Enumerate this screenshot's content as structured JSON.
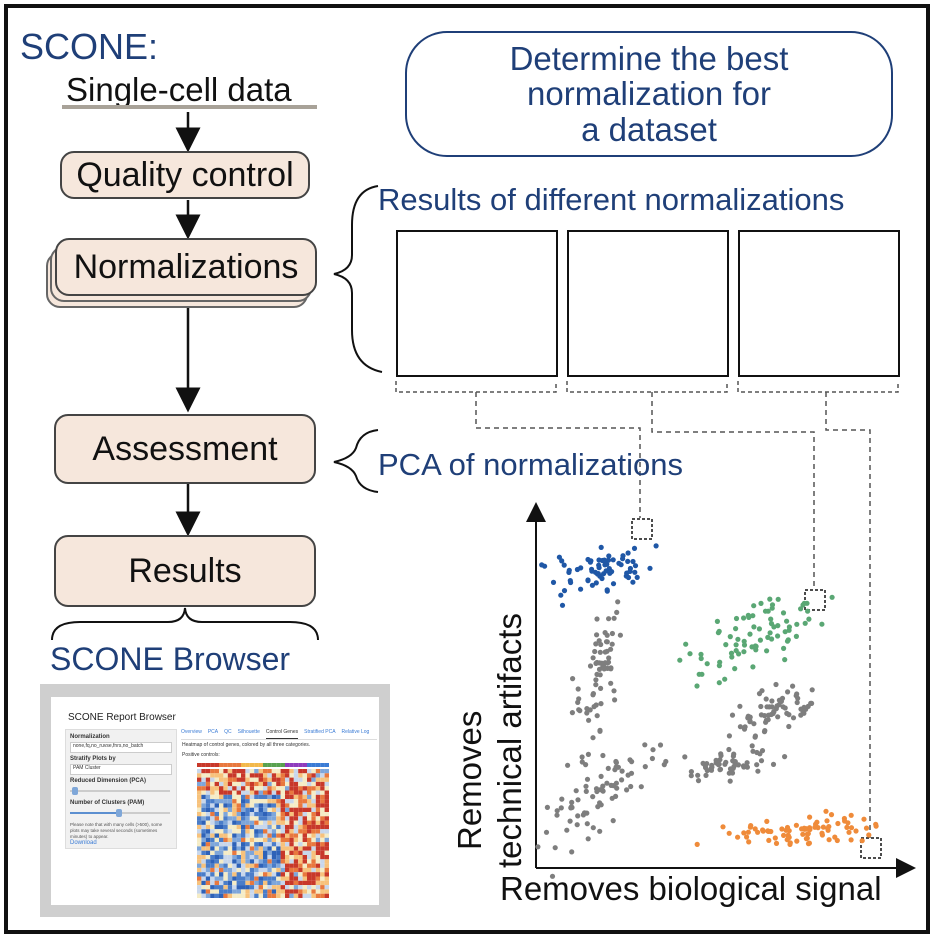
{
  "title": "SCONE:",
  "input_label": "Single-cell data",
  "goal": {
    "line1": "Determine the best",
    "line2": "normalization for",
    "line3": "a dataset"
  },
  "pipeline": {
    "qc": "Quality control",
    "normalizations": "Normalizations",
    "assessment": "Assessment",
    "results": "Results"
  },
  "results_caption": "Results of different normalizations",
  "pca_caption": "PCA of normalizations",
  "browser_caption": "SCONE Browser",
  "axes": {
    "y_line1": "Removes",
    "y_line2": "technical artifacts",
    "x": "Removes biological signal"
  },
  "colors": {
    "blue": "#1f3f78",
    "purple": "#8e3bbd",
    "tan": "#b39a52",
    "scatter_blue": "#1f57a6",
    "scatter_green": "#5aa774",
    "scatter_gray": "#7e7e7e",
    "scatter_orange": "#ef8b3a"
  },
  "browser": {
    "title": "SCONE Report Browser",
    "normalization_label": "Normalization",
    "normalization_value": "none,fq,no_ruvse,fnrs,no_batch",
    "stratify_label": "Stratify Plots by",
    "stratify_value": "PAM Cluster",
    "reduced_label": "Reduced Dimension (PCA)",
    "clusters_label": "Number of Clusters (PAM)",
    "note": "Please note that with many cells (>500), some plots may take several seconds (sometimes minutes) to appear.",
    "download": "Download",
    "tabs": [
      "Overview",
      "PCA",
      "QC",
      "Silhouette",
      "Control Genes",
      "Stratified PCA",
      "Relative Log"
    ],
    "heatmap_caption": "Heatmap of control genes, colored by all three categories.",
    "positive_controls": "Positive controls:"
  }
}
